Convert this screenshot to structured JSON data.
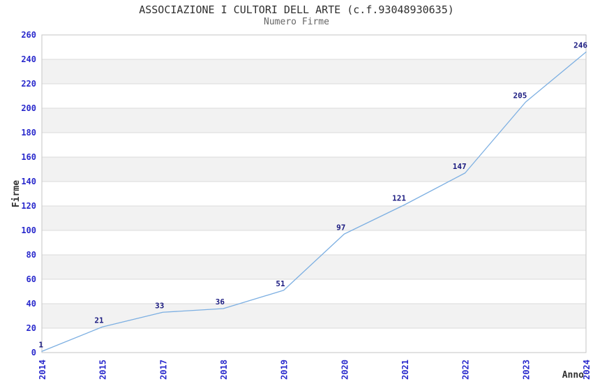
{
  "page": {
    "background": "#ffffff"
  },
  "chart_data": {
    "type": "line",
    "title": "ASSOCIAZIONE I CULTORI DELL ARTE (c.f.93048930635)",
    "subtitle": "Numero Firme",
    "xlabel": "Anno",
    "ylabel": "Firme",
    "categories": [
      "2014",
      "2015",
      "2017",
      "2018",
      "2019",
      "2020",
      "2021",
      "2022",
      "2023",
      "2024"
    ],
    "series": [
      {
        "name": "Numero Firme",
        "values": [
          1,
          21,
          33,
          36,
          51,
          97,
          121,
          147,
          205,
          246
        ]
      }
    ],
    "data_labels": [
      1,
      21,
      33,
      36,
      51,
      97,
      121,
      147,
      205,
      246
    ],
    "ylim": [
      0,
      260
    ],
    "ytick_step": 20,
    "yticks": [
      0,
      20,
      40,
      60,
      80,
      100,
      120,
      140,
      160,
      180,
      200,
      220,
      240,
      260
    ],
    "grid": true,
    "banded_background": true,
    "legend_position": "none",
    "colors": {
      "line": "#7CAFE2",
      "band": "#F2F2F2",
      "grid": "#DBDBDB",
      "border": "#C6C6C6",
      "tick_label": "#2929CC",
      "data_label": "#1A1A80",
      "title": "#303030",
      "subtitle": "#666666",
      "axis_title": "#303030"
    }
  }
}
